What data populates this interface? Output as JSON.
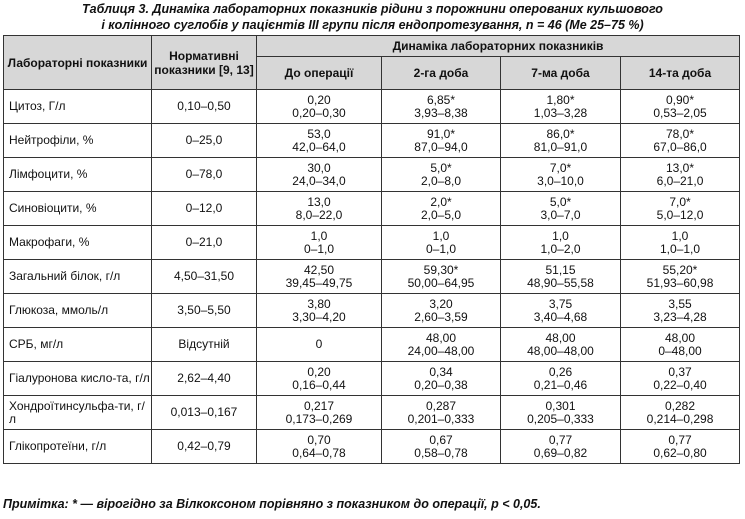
{
  "caption": {
    "line1": "Таблиця 3. Динаміка лабораторних показників рідини з порожнини оперованих кульшового",
    "line2": "і колінного суглобів у пацієнтів ІІІ групи після ендопротезування, n = 46 (Me 25–75 %)"
  },
  "headers": {
    "lab": "Лабораторні показники",
    "norm": "Нормативні показники [9, 13]",
    "dynamics": "Динаміка лабораторних показників",
    "periods": [
      "До операції",
      "2-га доба",
      "7-ма доба",
      "14-та доба"
    ]
  },
  "rows": [
    {
      "name": "Цитоз, Г/л",
      "norm": "0,10–0,50",
      "cells": [
        [
          "0,20",
          "0,20–0,30"
        ],
        [
          "6,85*",
          "3,93–8,38"
        ],
        [
          "1,80*",
          "1,03–3,28"
        ],
        [
          "0,90*",
          "0,53–2,05"
        ]
      ]
    },
    {
      "name": "Нейтрофіли, %",
      "norm": "0–25,0",
      "cells": [
        [
          "53,0",
          "42,0–64,0"
        ],
        [
          "91,0*",
          "87,0–94,0"
        ],
        [
          "86,0*",
          "81,0–91,0"
        ],
        [
          "78,0*",
          "67,0–86,0"
        ]
      ]
    },
    {
      "name": "Лімфоцити, %",
      "norm": "0–78,0",
      "cells": [
        [
          "30,0",
          "24,0–34,0"
        ],
        [
          "5,0*",
          "2,0–8,0"
        ],
        [
          "7,0*",
          "3,0–10,0"
        ],
        [
          "13,0*",
          "6,0–21,0"
        ]
      ]
    },
    {
      "name": "Синовіоцити, %",
      "norm": "0–12,0",
      "cells": [
        [
          "13,0",
          "8,0–22,0"
        ],
        [
          "2,0*",
          "2,0–5,0"
        ],
        [
          "5,0*",
          "3,0–7,0"
        ],
        [
          "7,0*",
          "5,0–12,0"
        ]
      ]
    },
    {
      "name": "Макрофаги, %",
      "norm": "0–21,0",
      "cells": [
        [
          "1,0",
          "0–1,0"
        ],
        [
          "1,0",
          "0–1,0"
        ],
        [
          "1,0",
          "1,0–2,0"
        ],
        [
          "1,0",
          "1,0–1,0"
        ]
      ]
    },
    {
      "name": "Загальний білок, г/л",
      "norm": "4,50–31,50",
      "cells": [
        [
          "42,50",
          "39,45–49,75"
        ],
        [
          "59,30*",
          "50,00–64,95"
        ],
        [
          "51,15",
          "48,90–55,58"
        ],
        [
          "55,20*",
          "51,93–60,98"
        ]
      ]
    },
    {
      "name": "Глюкоза, ммоль/л",
      "norm": "3,50–5,50",
      "cells": [
        [
          "3,80",
          "3,30–4,20"
        ],
        [
          "3,20",
          "2,60–3,59"
        ],
        [
          "3,75",
          "3,40–4,68"
        ],
        [
          "3,55",
          "3,23–4,28"
        ]
      ]
    },
    {
      "name": "СРБ, мг/л",
      "norm": "Відсутній",
      "cells": [
        [
          "0",
          ""
        ],
        [
          "48,00",
          "24,00–48,00"
        ],
        [
          "48,00",
          "48,00–48,00"
        ],
        [
          "48,00",
          "0–48,00"
        ]
      ]
    },
    {
      "name": "Гіалуронова кисло-та, г/л",
      "norm": "2,62–4,40",
      "cells": [
        [
          "0,20",
          "0,16–0,44"
        ],
        [
          "0,34",
          "0,20–0,38"
        ],
        [
          "0,26",
          "0,21–0,46"
        ],
        [
          "0,37",
          "0,22–0,40"
        ]
      ]
    },
    {
      "name": "Хондроїтинсульфа-ти, г/л",
      "norm": "0,013–0,167",
      "cells": [
        [
          "0,217",
          "0,173–0,269"
        ],
        [
          "0,287",
          "0,201–0,333"
        ],
        [
          "0,301",
          "0,205–0,333"
        ],
        [
          "0,282",
          "0,214–0,298"
        ]
      ]
    },
    {
      "name": "Глікопротеїни, г/л",
      "norm": "0,42–0,79",
      "cells": [
        [
          "0,70",
          "0,64–0,78"
        ],
        [
          "0,67",
          "0,58–0,78"
        ],
        [
          "0,77",
          "0,69–0,82"
        ],
        [
          "0,77",
          "0,62–0,80"
        ]
      ]
    }
  ],
  "note": {
    "label": "Примітка:",
    "text": " * — вірогідно за Вілкоксоном порівняно з показником до операції, p < 0,05."
  }
}
